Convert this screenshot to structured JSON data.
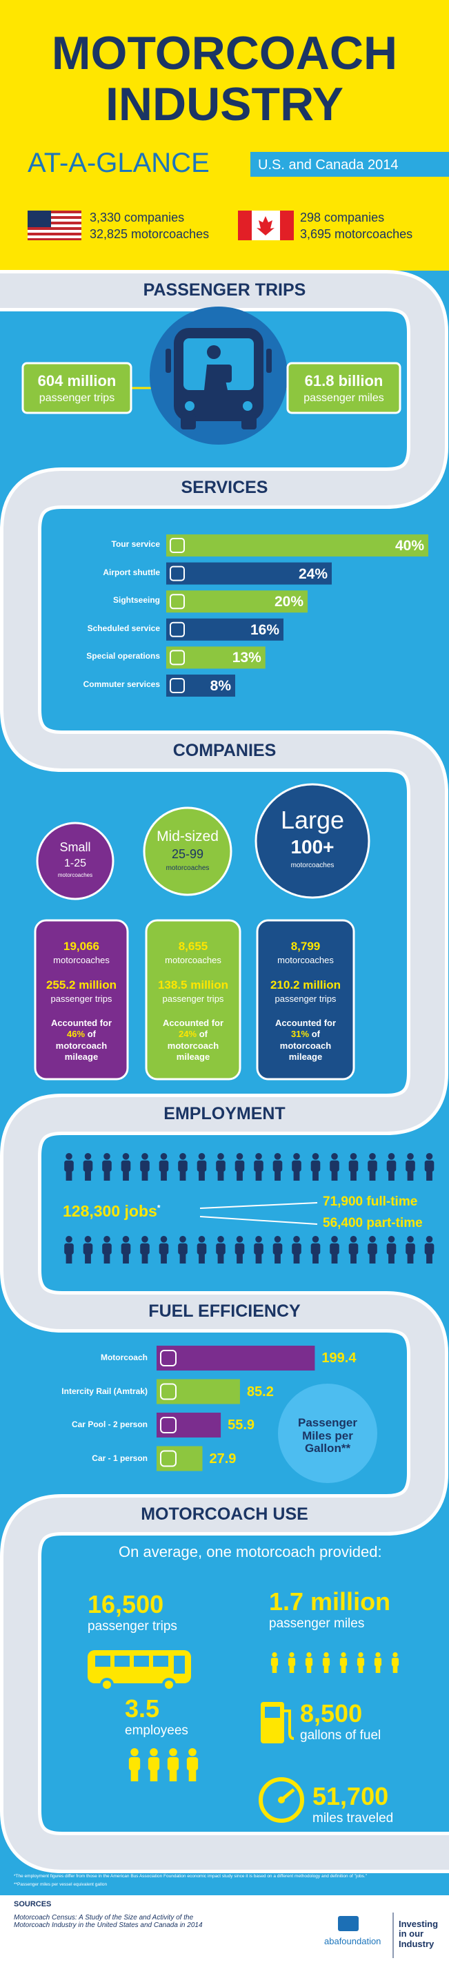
{
  "header": {
    "title_line1": "MOTORCOACH",
    "title_line2": "INDUSTRY",
    "subtitle": "AT-A-GLANCE",
    "region": "U.S. and Canada 2014",
    "countries": [
      {
        "companies": "3,330 companies",
        "motorcoaches": "32,825 motorcoaches"
      },
      {
        "companies": "298 companies",
        "motorcoaches": "3,695 motorcoaches"
      }
    ]
  },
  "passenger_trips": {
    "heading": "PASSENGER TRIPS",
    "trips": {
      "value": "604 million",
      "label": "passenger trips"
    },
    "miles": {
      "value": "61.8 billion",
      "label": "passenger miles"
    }
  },
  "services": {
    "heading": "SERVICES",
    "colors": [
      "#8dc63f",
      "#1b4f8a"
    ],
    "items": [
      {
        "name": "Tour service",
        "value": 40,
        "label": "40%"
      },
      {
        "name": "Airport shuttle",
        "value": 24,
        "label": "24%"
      },
      {
        "name": "Sightseeing",
        "value": 20,
        "label": "20%"
      },
      {
        "name": "Scheduled service",
        "value": 16,
        "label": "16%"
      },
      {
        "name": "Special operations",
        "value": 13,
        "label": "13%"
      },
      {
        "name": "Commuter services",
        "value": 8,
        "label": "8%"
      }
    ]
  },
  "companies": {
    "heading": "COMPANIES",
    "groups": [
      {
        "size": "Small",
        "range": "1-25",
        "unit": "motorcoaches",
        "count": "19,066",
        "count_label": "motorcoaches",
        "trips": "255.2 million",
        "trips_label": "passenger trips",
        "prefix": "Accounted for",
        "share": "46%",
        "suffix": "of motorcoach mileage"
      },
      {
        "size": "Mid-sized",
        "range": "25-99",
        "unit": "motorcoaches",
        "count": "8,655",
        "count_label": "motorcoaches",
        "trips": "138.5 million",
        "trips_label": "passenger trips",
        "prefix": "Accounted for",
        "share": "24%",
        "suffix": "of motorcoach mileage"
      },
      {
        "size": "Large",
        "range": "100+",
        "unit": "motorcoaches",
        "count": "8,799",
        "count_label": "motorcoaches",
        "trips": "210.2 million",
        "trips_label": "passenger trips",
        "prefix": "Accounted for",
        "share": "31%",
        "suffix": "of motorcoach mileage"
      }
    ]
  },
  "employment": {
    "heading": "EMPLOYMENT",
    "total": "128,300 jobs",
    "footnote_mark": "*",
    "full_time": "71,900 full-time",
    "part_time": "56,400 part-time"
  },
  "fuel": {
    "heading": "FUEL EFFICIENCY",
    "legend": "Passenger Miles per Gallon**",
    "items": [
      {
        "name": "Motorcoach",
        "value": 199.4,
        "color": "#7b2d8e"
      },
      {
        "name": "Intercity Rail (Amtrak)",
        "value": 85.2,
        "color": "#8dc63f"
      },
      {
        "name": "Car Pool - 2 person",
        "value": 55.9,
        "color": "#7b2d8e"
      },
      {
        "name": "Car - 1 person",
        "value": 27.9,
        "color": "#8dc63f"
      }
    ]
  },
  "use": {
    "heading": "MOTORCOACH USE",
    "intro": "On average, one motorcoach provided:",
    "trips": {
      "value": "16,500",
      "label": "passenger trips"
    },
    "miles": {
      "value": "1.7 million",
      "label": "passenger miles"
    },
    "employees": {
      "value": "3.5",
      "label": "employees"
    },
    "fuel": {
      "value": "8,500",
      "label": "gallons of fuel"
    },
    "distance": {
      "value": "51,700",
      "label": "miles traveled"
    }
  },
  "footnotes": [
    "*The employment figures differ from those in the American Bus Association Foundation economic impact study since it is based on a different methodology and definition of \"jobs.\"",
    "**Passenger miles per vessel equivalent gallon"
  ],
  "footer": {
    "sources_heading": "SOURCES",
    "source": "Motorcoach Census: A Study of the Size and Activity of the Motorcoach Industry in the United States and Canada in 2014",
    "logo": "abafoundation",
    "tagline": "Investing in our Industry"
  }
}
